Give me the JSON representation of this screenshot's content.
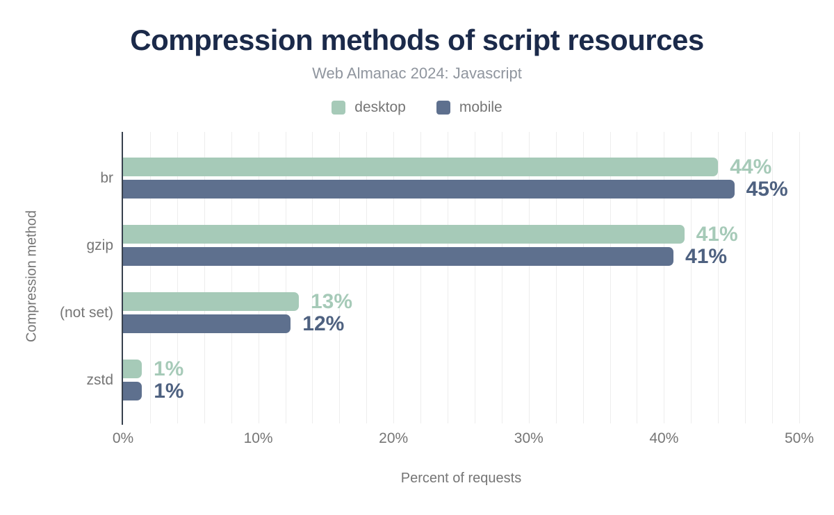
{
  "title": "Compression methods of script resources",
  "subtitle": "Web Almanac 2024: Javascript",
  "legend": [
    {
      "label": "desktop"
    },
    {
      "label": "mobile"
    }
  ],
  "colors": {
    "title": "#1b2a4a",
    "subtitle_text": "#8f959e",
    "axis_text": "#757575",
    "grid": "#ededed",
    "axis_line": "#37404d",
    "desktop": "#a6cab8",
    "mobile": "#5e708e",
    "desktop_label": "#a6cab8",
    "mobile_label": "#4e6180"
  },
  "chart_data": {
    "type": "bar",
    "orientation": "horizontal",
    "title": "Compression methods of script resources",
    "subtitle": "Web Almanac 2024: Javascript",
    "categories": [
      "br",
      "gzip",
      "(not set)",
      "zstd"
    ],
    "series": [
      {
        "name": "desktop",
        "values": [
          44,
          41.5,
          13,
          1.3
        ],
        "labels": [
          "44%",
          "41%",
          "13%",
          "1%"
        ],
        "color": "#a6cab8",
        "label_color": "#a6cab8"
      },
      {
        "name": "mobile",
        "values": [
          45.2,
          40.7,
          12.4,
          1.4
        ],
        "labels": [
          "45%",
          "41%",
          "12%",
          "1%"
        ],
        "color": "#5e708e",
        "label_color": "#4e6180"
      }
    ],
    "xlabel": "Percent of requests",
    "ylabel": "Compression method",
    "xlim": [
      0,
      50
    ],
    "x_ticks": [
      {
        "value": 0,
        "label": "0%"
      },
      {
        "value": 10,
        "label": "10%"
      },
      {
        "value": 20,
        "label": "20%"
      },
      {
        "value": 30,
        "label": "30%"
      },
      {
        "value": 40,
        "label": "40%"
      },
      {
        "value": 50,
        "label": "50%"
      }
    ],
    "grid_step": 2,
    "legend_position": "top",
    "grid": true
  }
}
